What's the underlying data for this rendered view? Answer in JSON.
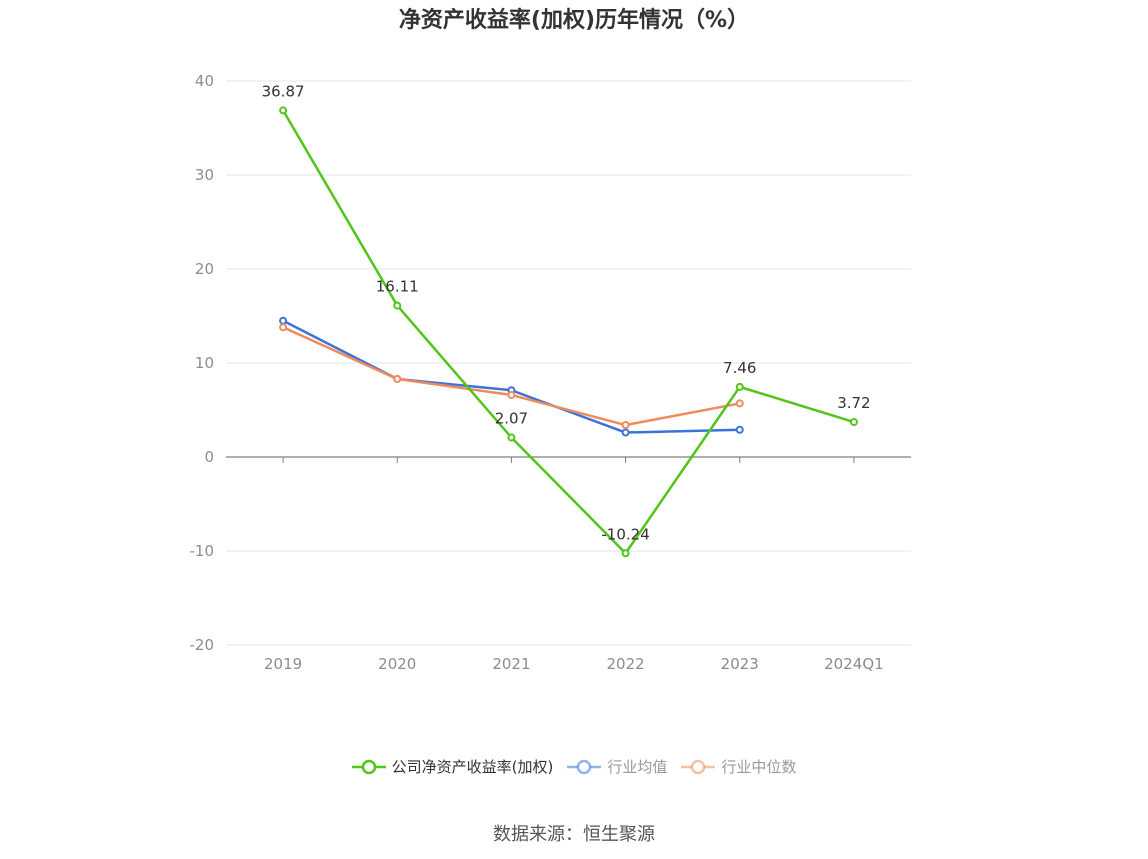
{
  "chart_data": {
    "type": "line",
    "title": "净资产收益率(加权)历年情况（%）",
    "categories": [
      "2019",
      "2020",
      "2021",
      "2022",
      "2023",
      "2024Q1"
    ],
    "ylim": [
      -20,
      40
    ],
    "yticks": [
      -20,
      -10,
      0,
      10,
      20,
      30,
      40
    ],
    "grid": true,
    "legend_position": "bottom",
    "series": [
      {
        "name": "公司净资产收益率(加权)",
        "color": "#52c41a",
        "values": [
          36.87,
          16.11,
          2.07,
          -10.24,
          7.46,
          3.72
        ],
        "labels": [
          "36.87",
          "16.11",
          "2.07",
          "-10.24",
          "7.46",
          "3.72"
        ]
      },
      {
        "name": "行业均值",
        "color": "#3b74d9",
        "values": [
          14.5,
          8.3,
          7.1,
          2.6,
          2.9,
          null
        ]
      },
      {
        "name": "行业中位数",
        "color": "#f08a5a",
        "values": [
          13.8,
          8.3,
          6.6,
          3.4,
          5.7,
          null
        ]
      }
    ]
  },
  "footer": {
    "source": "数据来源：恒生聚源"
  }
}
